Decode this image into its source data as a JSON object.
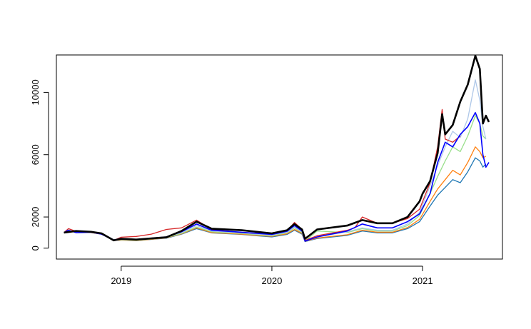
{
  "chart_data": {
    "type": "line",
    "title": "",
    "xlabel": "",
    "ylabel": "",
    "xlim": [
      2018.57,
      2021.53
    ],
    "ylim": [
      -700,
      12400
    ],
    "x_ticks": [
      {
        "value": 2019,
        "label": "2019"
      },
      {
        "value": 2020,
        "label": "2020"
      },
      {
        "value": 2021,
        "label": "2021"
      }
    ],
    "y_ticks": [
      {
        "value": 0,
        "label": "0"
      },
      {
        "value": 2000,
        "label": "2000"
      },
      {
        "value": 6000,
        "label": "6000"
      },
      {
        "value": 10000,
        "label": "10000"
      }
    ],
    "grid": false,
    "legend": "none",
    "series": [
      {
        "color": "#1f77b4",
        "width": 1.3,
        "points": [
          [
            2018.62,
            1000
          ],
          [
            2018.7,
            1080
          ],
          [
            2018.8,
            1000
          ],
          [
            2018.87,
            900
          ],
          [
            2018.95,
            520
          ],
          [
            2019.1,
            480
          ],
          [
            2019.3,
            640
          ],
          [
            2019.4,
            900
          ],
          [
            2019.5,
            1250
          ],
          [
            2019.6,
            980
          ],
          [
            2019.8,
            880
          ],
          [
            2019.9,
            800
          ],
          [
            2020.0,
            720
          ],
          [
            2020.1,
            880
          ],
          [
            2020.15,
            1150
          ],
          [
            2020.2,
            900
          ],
          [
            2020.22,
            420
          ],
          [
            2020.3,
            620
          ],
          [
            2020.5,
            820
          ],
          [
            2020.6,
            1100
          ],
          [
            2020.7,
            980
          ],
          [
            2020.8,
            980
          ],
          [
            2020.9,
            1250
          ],
          [
            2020.98,
            1700
          ],
          [
            2021.05,
            2700
          ],
          [
            2021.1,
            3400
          ],
          [
            2021.15,
            3900
          ],
          [
            2021.2,
            4400
          ],
          [
            2021.25,
            4200
          ],
          [
            2021.3,
            4900
          ],
          [
            2021.35,
            5800
          ],
          [
            2021.38,
            5600
          ],
          [
            2021.4,
            5200
          ],
          [
            2021.42,
            5400
          ]
        ]
      },
      {
        "color": "#ff7f0e",
        "width": 1.3,
        "points": [
          [
            2018.62,
            1000
          ],
          [
            2018.7,
            1080
          ],
          [
            2018.8,
            1000
          ],
          [
            2018.87,
            900
          ],
          [
            2018.95,
            520
          ],
          [
            2019.1,
            480
          ],
          [
            2019.3,
            660
          ],
          [
            2019.4,
            920
          ],
          [
            2019.5,
            1300
          ],
          [
            2019.6,
            1000
          ],
          [
            2019.8,
            900
          ],
          [
            2019.9,
            820
          ],
          [
            2020.0,
            760
          ],
          [
            2020.1,
            920
          ],
          [
            2020.15,
            1200
          ],
          [
            2020.2,
            950
          ],
          [
            2020.22,
            440
          ],
          [
            2020.3,
            650
          ],
          [
            2020.5,
            860
          ],
          [
            2020.6,
            1150
          ],
          [
            2020.7,
            1020
          ],
          [
            2020.8,
            1020
          ],
          [
            2020.9,
            1320
          ],
          [
            2020.98,
            1850
          ],
          [
            2021.05,
            3000
          ],
          [
            2021.1,
            3800
          ],
          [
            2021.15,
            4400
          ],
          [
            2021.2,
            5000
          ],
          [
            2021.25,
            4700
          ],
          [
            2021.3,
            5500
          ],
          [
            2021.35,
            6500
          ],
          [
            2021.38,
            6200
          ],
          [
            2021.4,
            5800
          ],
          [
            2021.42,
            5900
          ]
        ]
      },
      {
        "color": "#98df8a",
        "width": 1.3,
        "points": [
          [
            2018.62,
            1000
          ],
          [
            2018.7,
            1100
          ],
          [
            2018.8,
            1020
          ],
          [
            2018.87,
            920
          ],
          [
            2018.95,
            540
          ],
          [
            2019.1,
            500
          ],
          [
            2019.3,
            680
          ],
          [
            2019.4,
            950
          ],
          [
            2019.5,
            1350
          ],
          [
            2019.6,
            1050
          ],
          [
            2019.8,
            940
          ],
          [
            2019.9,
            860
          ],
          [
            2020.0,
            800
          ],
          [
            2020.1,
            980
          ],
          [
            2020.15,
            1300
          ],
          [
            2020.2,
            1000
          ],
          [
            2020.22,
            460
          ],
          [
            2020.3,
            1100
          ],
          [
            2020.5,
            1000
          ],
          [
            2020.6,
            1250
          ],
          [
            2020.7,
            1100
          ],
          [
            2020.8,
            1100
          ],
          [
            2020.9,
            1450
          ],
          [
            2020.98,
            2100
          ],
          [
            2021.05,
            3500
          ],
          [
            2021.1,
            4600
          ],
          [
            2021.15,
            5600
          ],
          [
            2021.2,
            6500
          ],
          [
            2021.25,
            6200
          ],
          [
            2021.3,
            7200
          ],
          [
            2021.35,
            8500
          ],
          [
            2021.38,
            8000
          ],
          [
            2021.4,
            7200
          ],
          [
            2021.42,
            7000
          ]
        ]
      },
      {
        "color": "#aec7e8",
        "width": 1.3,
        "points": [
          [
            2018.62,
            1000
          ],
          [
            2018.7,
            1120
          ],
          [
            2018.8,
            1040
          ],
          [
            2018.87,
            940
          ],
          [
            2018.95,
            560
          ],
          [
            2019.1,
            520
          ],
          [
            2019.3,
            720
          ],
          [
            2019.4,
            1000
          ],
          [
            2019.5,
            1450
          ],
          [
            2019.6,
            1100
          ],
          [
            2019.8,
            980
          ],
          [
            2019.9,
            900
          ],
          [
            2020.0,
            840
          ],
          [
            2020.1,
            1020
          ],
          [
            2020.15,
            1350
          ],
          [
            2020.2,
            1050
          ],
          [
            2020.22,
            480
          ],
          [
            2020.3,
            720
          ],
          [
            2020.5,
            1050
          ],
          [
            2020.6,
            1300
          ],
          [
            2020.7,
            1150
          ],
          [
            2020.8,
            1150
          ],
          [
            2020.9,
            1550
          ],
          [
            2020.98,
            2300
          ],
          [
            2021.05,
            4000
          ],
          [
            2021.1,
            5300
          ],
          [
            2021.15,
            6500
          ],
          [
            2021.2,
            7500
          ],
          [
            2021.25,
            7100
          ],
          [
            2021.3,
            8300
          ],
          [
            2021.35,
            10800
          ],
          [
            2021.38,
            9500
          ],
          [
            2021.4,
            7800
          ],
          [
            2021.42,
            7000
          ]
        ]
      },
      {
        "color": "#d62728",
        "width": 1.3,
        "points": [
          [
            2018.62,
            1000
          ],
          [
            2018.65,
            1250
          ],
          [
            2018.7,
            1080
          ],
          [
            2018.8,
            1050
          ],
          [
            2018.87,
            950
          ],
          [
            2018.95,
            500
          ],
          [
            2019.0,
            700
          ],
          [
            2019.1,
            750
          ],
          [
            2019.2,
            900
          ],
          [
            2019.3,
            1200
          ],
          [
            2019.4,
            1300
          ],
          [
            2019.5,
            1800
          ],
          [
            2019.55,
            1500
          ],
          [
            2019.6,
            1200
          ],
          [
            2019.8,
            1000
          ],
          [
            2019.9,
            950
          ],
          [
            2020.0,
            900
          ],
          [
            2020.1,
            1100
          ],
          [
            2020.15,
            1650
          ],
          [
            2020.2,
            1200
          ],
          [
            2020.22,
            500
          ],
          [
            2020.3,
            800
          ],
          [
            2020.5,
            1150
          ],
          [
            2020.55,
            1300
          ],
          [
            2020.6,
            2000
          ],
          [
            2020.7,
            1600
          ],
          [
            2020.8,
            1600
          ],
          [
            2020.9,
            1900
          ],
          [
            2020.98,
            2500
          ],
          [
            2021.05,
            4200
          ],
          [
            2021.1,
            6500
          ],
          [
            2021.13,
            8900
          ],
          [
            2021.15,
            7000
          ],
          [
            2021.2,
            6800
          ],
          [
            2021.25,
            7200
          ]
        ]
      },
      {
        "color": "#0000ff",
        "width": 1.6,
        "points": [
          [
            2018.62,
            1000
          ],
          [
            2018.65,
            1150
          ],
          [
            2018.7,
            1000
          ],
          [
            2018.8,
            1020
          ],
          [
            2018.87,
            900
          ],
          [
            2018.95,
            520
          ],
          [
            2019.0,
            620
          ],
          [
            2019.1,
            560
          ],
          [
            2019.3,
            720
          ],
          [
            2019.4,
            1050
          ],
          [
            2019.5,
            1550
          ],
          [
            2019.6,
            1150
          ],
          [
            2019.8,
            1020
          ],
          [
            2019.9,
            950
          ],
          [
            2020.0,
            880
          ],
          [
            2020.1,
            1080
          ],
          [
            2020.15,
            1450
          ],
          [
            2020.2,
            1100
          ],
          [
            2020.22,
            450
          ],
          [
            2020.3,
            720
          ],
          [
            2020.5,
            1100
          ],
          [
            2020.6,
            1550
          ],
          [
            2020.7,
            1300
          ],
          [
            2020.8,
            1300
          ],
          [
            2020.9,
            1700
          ],
          [
            2020.98,
            2200
          ],
          [
            2021.05,
            3500
          ],
          [
            2021.1,
            5500
          ],
          [
            2021.15,
            6800
          ],
          [
            2021.2,
            6500
          ],
          [
            2021.25,
            7300
          ],
          [
            2021.3,
            7800
          ],
          [
            2021.35,
            8700
          ],
          [
            2021.38,
            8000
          ],
          [
            2021.4,
            6000
          ],
          [
            2021.42,
            5200
          ],
          [
            2021.44,
            5500
          ]
        ]
      },
      {
        "color": "#000000",
        "width": 2.6,
        "points": [
          [
            2018.62,
            1000
          ],
          [
            2018.7,
            1100
          ],
          [
            2018.8,
            1050
          ],
          [
            2018.87,
            950
          ],
          [
            2018.95,
            500
          ],
          [
            2019.0,
            600
          ],
          [
            2019.1,
            550
          ],
          [
            2019.3,
            700
          ],
          [
            2019.4,
            1100
          ],
          [
            2019.5,
            1700
          ],
          [
            2019.6,
            1250
          ],
          [
            2019.8,
            1150
          ],
          [
            2019.9,
            1050
          ],
          [
            2020.0,
            950
          ],
          [
            2020.1,
            1150
          ],
          [
            2020.15,
            1550
          ],
          [
            2020.2,
            1200
          ],
          [
            2020.22,
            600
          ],
          [
            2020.3,
            1200
          ],
          [
            2020.5,
            1450
          ],
          [
            2020.6,
            1800
          ],
          [
            2020.7,
            1600
          ],
          [
            2020.8,
            1600
          ],
          [
            2020.9,
            2000
          ],
          [
            2020.98,
            3000
          ],
          [
            2021.0,
            3500
          ],
          [
            2021.05,
            4300
          ],
          [
            2021.1,
            6100
          ],
          [
            2021.13,
            8600
          ],
          [
            2021.15,
            7300
          ],
          [
            2021.2,
            7900
          ],
          [
            2021.25,
            9400
          ],
          [
            2021.3,
            10500
          ],
          [
            2021.35,
            12350
          ],
          [
            2021.38,
            11500
          ],
          [
            2021.4,
            8000
          ],
          [
            2021.42,
            8500
          ],
          [
            2021.44,
            8100
          ]
        ]
      }
    ]
  }
}
